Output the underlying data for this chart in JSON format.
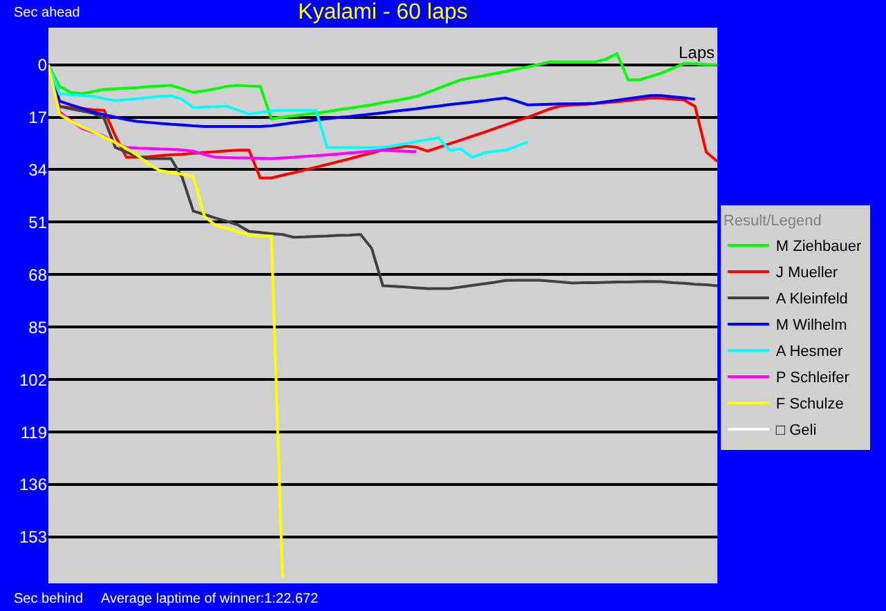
{
  "chart_data": {
    "type": "line",
    "title": "Kyalami - 60 laps",
    "xlabel": "Laps",
    "ylabel": "Sec ahead",
    "annotations": [
      "Sec behind",
      "Average laptime of winner:1:22.672"
    ],
    "legend_title": "Result/Legend",
    "legend": "right",
    "grid": "y",
    "tick_labels": "y",
    "categories": [
      null,
      null,
      null,
      null,
      null,
      null,
      null,
      null,
      null,
      null,
      null,
      null,
      null,
      null,
      null,
      null,
      null,
      null,
      null,
      null,
      null,
      null,
      null,
      null,
      null,
      null,
      null,
      null,
      null,
      null,
      null,
      null,
      null,
      null,
      null,
      null,
      null,
      null,
      null,
      null,
      null,
      null,
      null,
      null,
      null,
      null,
      null,
      null,
      null,
      null,
      null,
      null,
      null,
      null,
      null,
      null,
      null,
      null,
      null,
      null,
      null
    ],
    "ylim": [
      168,
      -12
    ],
    "yticks": [
      0,
      17,
      34,
      51,
      68,
      85,
      102,
      119,
      136,
      153
    ],
    "marker": "none",
    "line_style": "solid",
    "series": [
      {
        "name": "M Ziehbauer",
        "color": "#00ff00",
        "values": [
          0,
          7,
          9,
          9.4,
          8.7,
          8,
          7.8,
          7.6,
          7.4,
          7.1,
          6.9,
          6.7,
          7.8,
          9,
          8.4,
          7.8,
          7,
          6.7,
          6.9,
          7,
          17.5,
          17,
          16.6,
          16.1,
          15.7,
          15.2,
          14.6,
          14.1,
          13.5,
          13,
          12.3,
          11.7,
          11,
          10.3,
          9,
          7.6,
          6.2,
          4.9,
          4.2,
          3.6,
          2.9,
          2.2,
          1.4,
          0.7,
          -0.1,
          -0.9,
          -0.9,
          -0.9,
          -0.9,
          -0.9,
          -1.8,
          -3.6,
          4.9,
          4.9,
          3.8,
          2.7,
          1.2,
          -0.4,
          -0.3,
          -0.1,
          0
        ]
      },
      {
        "name": "J Mueller",
        "color": "#ff0000",
        "values": [
          0,
          13.5,
          13.9,
          14.2,
          14.6,
          14.8,
          23,
          30,
          30,
          29.8,
          29.5,
          29.2,
          29,
          28.7,
          28.4,
          28.2,
          27.9,
          27.7,
          27.7,
          36.7,
          36.7,
          35.8,
          35,
          34.1,
          33.2,
          32.3,
          31.4,
          30.5,
          29.5,
          28.6,
          27.6,
          27.2,
          26.4,
          26.7,
          28,
          26.8,
          25.6,
          24.4,
          23.2,
          22,
          20.7,
          19.5,
          18.2,
          17,
          15.7,
          14.3,
          13.3,
          13.1,
          12.9,
          12.6,
          12.3,
          12,
          11.6,
          11.2,
          10.8,
          10.9,
          11.1,
          11.4,
          13.5,
          28.3,
          31.3
        ]
      },
      {
        "name": "A Kleinfeld",
        "color": "#404040",
        "values": [
          0,
          13.5,
          14.3,
          15,
          15.7,
          17.4,
          26.8,
          28.3,
          29.8,
          30.4,
          30.4,
          30.4,
          36.5,
          47.4,
          48.5,
          49.7,
          50.7,
          51.9,
          54,
          54.3,
          54.7,
          55,
          55.9,
          55.8,
          55.6,
          55.5,
          55.3,
          55.2,
          55,
          59.5,
          71.6,
          71.8,
          72,
          72.3,
          72.5,
          72.5,
          72.5,
          72,
          71.5,
          71,
          70.5,
          69.9,
          69.8,
          69.8,
          69.8,
          70.1,
          70.4,
          70.7,
          70.6,
          70.6,
          70.5,
          70.4,
          70.4,
          70.3,
          70.2,
          70.3,
          70.6,
          70.8,
          71.1,
          71.3,
          71.6
        ]
      },
      {
        "name": "M Wilhelm",
        "color": "#0000ff",
        "values": [
          0,
          11.8,
          13,
          14.1,
          15.3,
          16.2,
          17,
          17.8,
          18.4,
          18.7,
          19,
          19.3,
          19.5,
          19.8,
          20,
          20,
          20,
          20,
          20,
          20,
          19.8,
          19.3,
          18.8,
          18.4,
          17.9,
          17.5,
          17.1,
          16.8,
          16.4,
          16,
          15.6,
          15.1,
          14.7,
          14.3,
          13.8,
          13.4,
          12.9,
          12.5,
          12.1,
          11.7,
          11.2,
          10.8,
          11.8,
          13,
          12.9,
          12.8,
          12.7,
          12.7,
          12.6,
          12.5,
          12,
          11.5,
          11,
          10.5,
          10,
          10,
          10.4,
          10.7,
          11.2,
          null,
          null
        ]
      },
      {
        "name": "A Hesmer",
        "color": "#00ffff",
        "values": [
          0,
          9.5,
          9.7,
          10,
          10.3,
          11,
          11.6,
          11.3,
          11,
          10.6,
          10.3,
          10,
          11.2,
          13.9,
          13.7,
          13.6,
          13.4,
          14.7,
          16,
          15.5,
          14.9,
          14.8,
          14.8,
          14.8,
          14.8,
          26.8,
          26.8,
          26.8,
          26.8,
          26.8,
          26.8,
          26.2,
          25.6,
          24.9,
          24.3,
          23.7,
          27.7,
          27.3,
          30,
          28.7,
          28,
          27.7,
          26.4,
          25,
          null,
          null,
          null,
          null,
          null,
          null,
          null,
          null,
          null,
          null,
          null,
          null,
          null,
          null,
          null,
          null,
          null
        ]
      },
      {
        "name": "P Schleifer",
        "color": "#ff00ff",
        "values": [
          0,
          15.3,
          18,
          20.6,
          21.9,
          23.1,
          25.3,
          26.8,
          27,
          27.1,
          27.3,
          27.4,
          27.6,
          28,
          29.1,
          30,
          30.1,
          30.2,
          30.2,
          30.3,
          30.4,
          30.2,
          30,
          29.7,
          29.5,
          29.2,
          28.9,
          28.6,
          28.3,
          28,
          27.7,
          27.9,
          28,
          28.2,
          null,
          null,
          null,
          null,
          null,
          null,
          null,
          null,
          null,
          null,
          null,
          null,
          null,
          null,
          null,
          null,
          null,
          null,
          null,
          null,
          null,
          null,
          null,
          null,
          null,
          null,
          null
        ]
      },
      {
        "name": "F Schulze",
        "color": "#ffff00",
        "values": [
          0,
          16.1,
          18.2,
          20.1,
          21.7,
          23.4,
          25.2,
          27.1,
          29.4,
          32.3,
          34.3,
          34.9,
          35.5,
          36.2,
          49.2,
          52,
          53.1,
          54.1,
          55.2,
          55.5,
          55.5,
          166,
          null,
          null,
          null,
          null,
          null,
          null,
          null,
          null,
          null,
          null,
          null,
          null,
          null,
          null,
          null,
          null,
          null,
          null,
          null,
          null,
          null,
          null,
          null,
          null,
          null,
          null,
          null,
          null,
          null,
          null,
          null,
          null,
          null,
          null,
          null,
          null,
          null,
          null,
          null
        ]
      },
      {
        "name": "□ Geli",
        "color": "#ffffff",
        "values": [
          null,
          null,
          null,
          null,
          null,
          null,
          null,
          null,
          null,
          null,
          null,
          null,
          null,
          null,
          null,
          null,
          null,
          null,
          null,
          null,
          null,
          null,
          null,
          null,
          null,
          null,
          null,
          null,
          null,
          null,
          null,
          null,
          null,
          null,
          null,
          null,
          null,
          null,
          null,
          null,
          null,
          null,
          null,
          null,
          null,
          null,
          null,
          null,
          null,
          null,
          null,
          null,
          null,
          null,
          null,
          null,
          null,
          null,
          null,
          null,
          null
        ]
      }
    ]
  }
}
